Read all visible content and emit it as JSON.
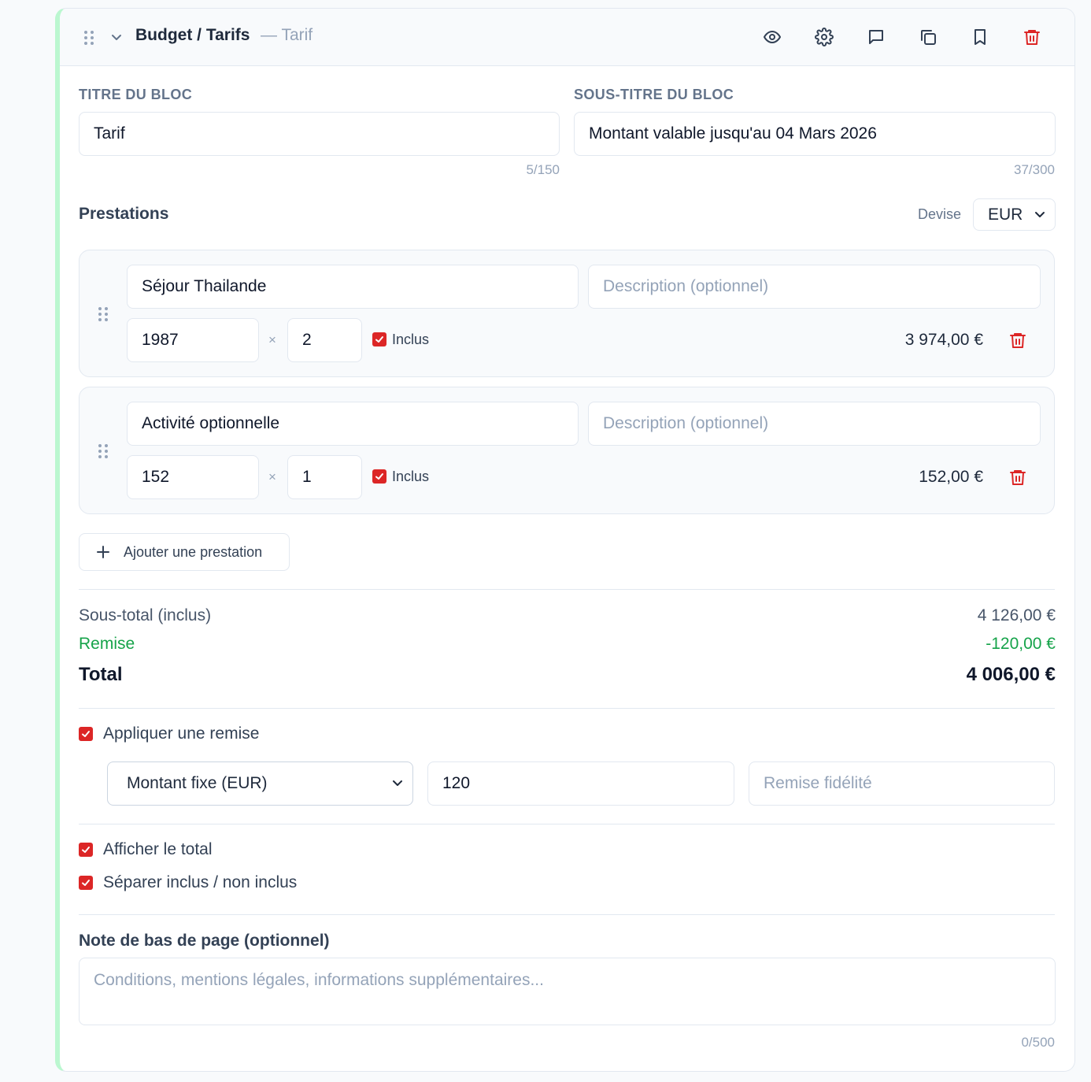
{
  "header": {
    "title": "Budget / Tarifs",
    "subtitle": "— Tarif",
    "icons": [
      "eye-icon",
      "gear-icon",
      "comment-icon",
      "copy-icon",
      "bookmark-icon",
      "trash-icon"
    ]
  },
  "block": {
    "title_label": "TITRE DU BLOC",
    "title_value": "Tarif",
    "title_counter": "5/150",
    "subtitle_label": "SOUS-TITRE DU BLOC",
    "subtitle_value": "Montant valable jusqu'au 04 Mars 2026",
    "subtitle_counter": "37/300"
  },
  "prestations": {
    "title": "Prestations",
    "devise_label": "Devise",
    "devise_value": "EUR",
    "items": [
      {
        "name": "Séjour Thailande",
        "description_placeholder": "Description (optionnel)",
        "price": "1987",
        "times": "×",
        "qty": "2",
        "included": true,
        "included_label": "Inclus",
        "amount": "3 974,00 €"
      },
      {
        "name": "Activité optionnelle",
        "description_placeholder": "Description (optionnel)",
        "price": "152",
        "times": "×",
        "qty": "1",
        "included": true,
        "included_label": "Inclus",
        "amount": "152,00 €"
      }
    ],
    "add_label": "Ajouter une prestation"
  },
  "summary": {
    "subtotal_label": "Sous-total (inclus)",
    "subtotal_value": "4 126,00 €",
    "discount_label": "Remise",
    "discount_value": "-120,00 €",
    "total_label": "Total",
    "total_value": "4 006,00 €"
  },
  "discount": {
    "apply_label": "Appliquer une remise",
    "apply_checked": true,
    "type_value": "Montant fixe (EUR)",
    "amount_value": "120",
    "reason_placeholder": "Remise fidélité"
  },
  "options": {
    "show_total_label": "Afficher le total",
    "show_total_checked": true,
    "separate_label": "Séparer inclus / non inclus",
    "separate_checked": true
  },
  "footer_note": {
    "label": "Note de bas de page (optionnel)",
    "placeholder": "Conditions, mentions légales, informations supplémentaires...",
    "counter": "0/500"
  },
  "colors": {
    "accent_red": "#dc2626",
    "accent_green": "#16a34a",
    "left_border": "#bbf7d0"
  }
}
